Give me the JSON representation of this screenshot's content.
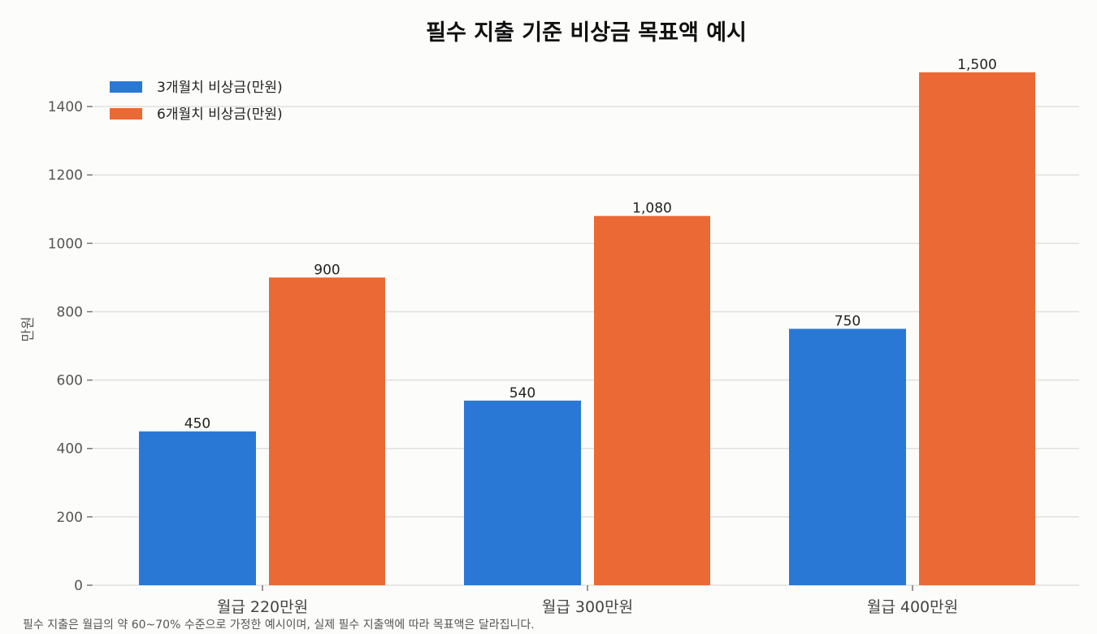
{
  "chart_data": {
    "type": "bar",
    "title": "필수 지출 기준 비상금 목표액 예시",
    "ylabel": "만원",
    "xlabel": "",
    "categories": [
      "월급 220만원",
      "월급 300만원",
      "월급 400만원"
    ],
    "series": [
      {
        "name": "3개월치 비상금(만원)",
        "values": [
          450,
          540,
          750
        ],
        "color": "#2a78d6",
        "labels": [
          "450",
          "540",
          "750"
        ]
      },
      {
        "name": "6개월치 비상금(만원)",
        "values": [
          900,
          1080,
          1500
        ],
        "color": "#ea6935",
        "labels": [
          "900",
          "1,080",
          "1,500"
        ]
      }
    ],
    "ylim": [
      0,
      1550
    ],
    "yticks": [
      0,
      200,
      400,
      600,
      800,
      1000,
      1200,
      1400
    ],
    "grid": true,
    "legend": "top-left"
  },
  "footnote": "필수 지출은 월급의 약 60~70% 수준으로 가정한 예시이며, 실제 필수 지출액에 따라 목표액은 달라집니다."
}
